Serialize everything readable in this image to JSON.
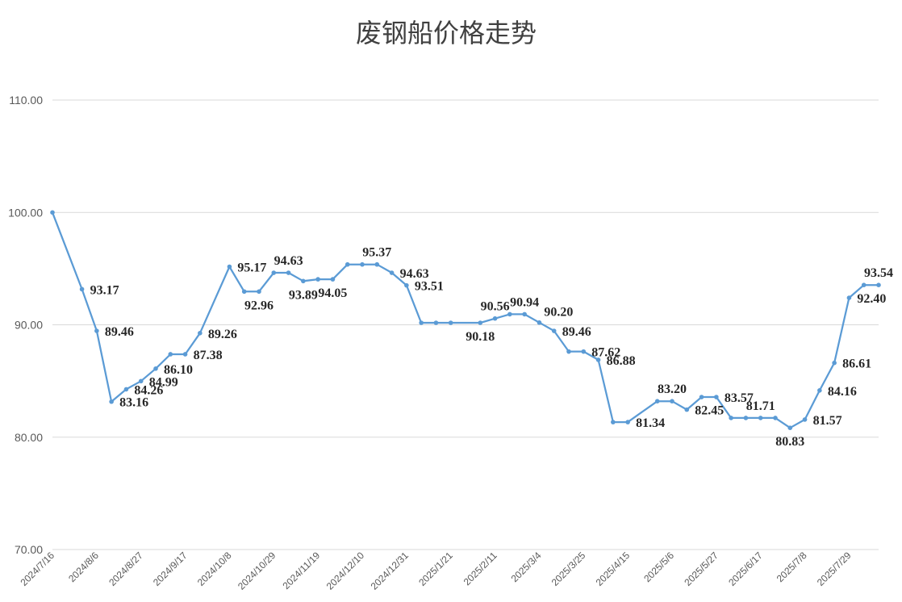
{
  "chart_data": {
    "type": "line",
    "title": "废钢船价格走势",
    "xlabel": "",
    "ylabel": "",
    "ylim": [
      70,
      110
    ],
    "yticks": [
      "70.00",
      "80.00",
      "90.00",
      "100.00",
      "110.00"
    ],
    "grid": true,
    "legend": "none",
    "colors": {
      "series": "#5b9bd5"
    },
    "x_tick_labels": [
      {
        "index": 0,
        "label": "2024/7/16"
      },
      {
        "index": 3,
        "label": "2024/8/6"
      },
      {
        "index": 6,
        "label": "2024/8/27"
      },
      {
        "index": 9,
        "label": "2024/9/17"
      },
      {
        "index": 12,
        "label": "2024/10/8"
      },
      {
        "index": 15,
        "label": "2024/10/29"
      },
      {
        "index": 18,
        "label": "2024/11/19"
      },
      {
        "index": 21,
        "label": "2024/12/10"
      },
      {
        "index": 24,
        "label": "2024/12/31"
      },
      {
        "index": 27,
        "label": "2025/1/21"
      },
      {
        "index": 30,
        "label": "2025/2/11"
      },
      {
        "index": 33,
        "label": "2025/3/4"
      },
      {
        "index": 36,
        "label": "2025/3/25"
      },
      {
        "index": 39,
        "label": "2025/4/15"
      },
      {
        "index": 42,
        "label": "2025/5/6"
      },
      {
        "index": 45,
        "label": "2025/5/27"
      },
      {
        "index": 48,
        "label": "2025/6/17"
      },
      {
        "index": 51,
        "label": "2025/7/8"
      },
      {
        "index": 54,
        "label": "2025/7/29"
      }
    ],
    "values": [
      100.0,
      null,
      93.17,
      89.46,
      83.16,
      84.26,
      84.99,
      86.1,
      87.38,
      87.38,
      89.26,
      null,
      95.17,
      92.96,
      92.96,
      94.63,
      94.63,
      93.89,
      94.05,
      94.05,
      95.37,
      95.37,
      95.37,
      94.63,
      93.51,
      90.18,
      90.18,
      90.18,
      null,
      90.18,
      90.56,
      90.94,
      90.94,
      90.2,
      89.46,
      87.62,
      87.62,
      86.88,
      81.34,
      81.34,
      null,
      83.2,
      83.2,
      82.45,
      83.57,
      83.57,
      81.71,
      81.71,
      81.71,
      81.71,
      80.83,
      81.57,
      84.16,
      86.61,
      92.4,
      93.54,
      93.54
    ],
    "data_labels": [
      {
        "index": 2,
        "text": "93.17",
        "pos": "right"
      },
      {
        "index": 3,
        "text": "89.46",
        "pos": "right"
      },
      {
        "index": 4,
        "text": "83.16",
        "pos": "right"
      },
      {
        "index": 5,
        "text": "84.26",
        "pos": "right"
      },
      {
        "index": 6,
        "text": "84.99",
        "pos": "right"
      },
      {
        "index": 7,
        "text": "86.10",
        "pos": "right"
      },
      {
        "index": 9,
        "text": "87.38",
        "pos": "right"
      },
      {
        "index": 10,
        "text": "89.26",
        "pos": "right"
      },
      {
        "index": 12,
        "text": "95.17",
        "pos": "right"
      },
      {
        "index": 14,
        "text": "92.96",
        "pos": "below"
      },
      {
        "index": 16,
        "text": "94.63",
        "pos": "above"
      },
      {
        "index": 17,
        "text": "93.89",
        "pos": "below"
      },
      {
        "index": 19,
        "text": "94.05",
        "pos": "below"
      },
      {
        "index": 22,
        "text": "95.37",
        "pos": "above"
      },
      {
        "index": 23,
        "text": "94.63",
        "pos": "right"
      },
      {
        "index": 24,
        "text": "93.51",
        "pos": "right"
      },
      {
        "index": 29,
        "text": "90.18",
        "pos": "below"
      },
      {
        "index": 30,
        "text": "90.56",
        "pos": "above"
      },
      {
        "index": 32,
        "text": "90.94",
        "pos": "above"
      },
      {
        "index": 33,
        "text": "90.20",
        "pos": "aboveright"
      },
      {
        "index": 34,
        "text": "89.46",
        "pos": "right"
      },
      {
        "index": 36,
        "text": "87.62",
        "pos": "right"
      },
      {
        "index": 37,
        "text": "86.88",
        "pos": "right"
      },
      {
        "index": 39,
        "text": "81.34",
        "pos": "right"
      },
      {
        "index": 42,
        "text": "83.20",
        "pos": "above"
      },
      {
        "index": 43,
        "text": "82.45",
        "pos": "right"
      },
      {
        "index": 45,
        "text": "83.57",
        "pos": "right"
      },
      {
        "index": 48,
        "text": "81.71",
        "pos": "above"
      },
      {
        "index": 50,
        "text": "80.83",
        "pos": "below"
      },
      {
        "index": 51,
        "text": "81.57",
        "pos": "right"
      },
      {
        "index": 52,
        "text": "84.16",
        "pos": "right"
      },
      {
        "index": 53,
        "text": "86.61",
        "pos": "right"
      },
      {
        "index": 54,
        "text": "92.40",
        "pos": "right"
      },
      {
        "index": 56,
        "text": "93.54",
        "pos": "above"
      }
    ]
  }
}
